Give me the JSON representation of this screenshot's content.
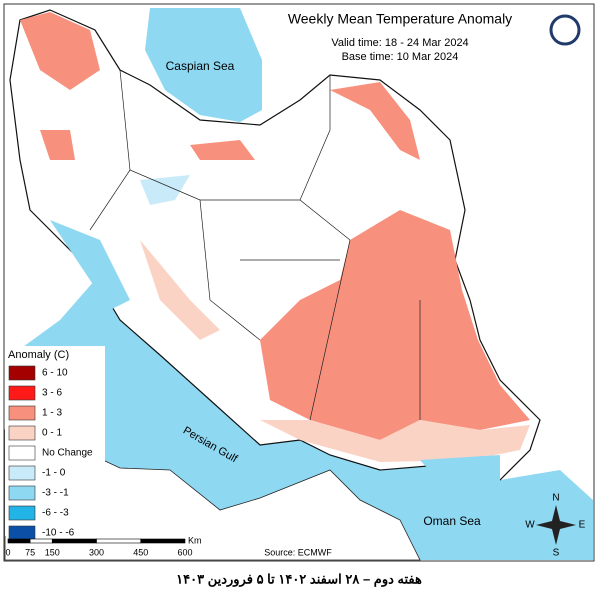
{
  "map": {
    "title": "Weekly Mean Temperature Anomaly",
    "subtitle": [
      "Valid time: 18 - 24 Mar 2024",
      "Base time: 10 Mar 2024"
    ],
    "labels": {
      "caspian": "Caspian Sea",
      "gulf": "Persian Gulf",
      "oman": "Oman Sea"
    },
    "legend": {
      "title": "Anomaly (C)",
      "items": [
        {
          "label": "6 - 10",
          "color": "#a50000"
        },
        {
          "label": "3 - 6",
          "color": "#ff1a1a"
        },
        {
          "label": "1 - 3",
          "color": "#f7917d"
        },
        {
          "label": "0 - 1",
          "color": "#fbd3c4"
        },
        {
          "label": "No Change",
          "color": "#ffffff"
        },
        {
          "label": "-1 - 0",
          "color": "#c9eaf8"
        },
        {
          "label": "-3 - -1",
          "color": "#8fd8f2"
        },
        {
          "label": "-6 - -3",
          "color": "#22b4e6"
        },
        {
          "label": "-10 - -6",
          "color": "#0b4fa6"
        }
      ]
    },
    "scale": {
      "ticks": [
        0,
        75,
        150,
        300,
        450,
        600
      ],
      "unit": "Km"
    },
    "source": "Source: ECMWF",
    "compass": {
      "n": "N",
      "s": "S",
      "e": "E",
      "w": "W"
    },
    "footer": "هفته دوم – ۲۸ اسفند ۱۴۰۲ تا ۵ فروردین ۱۴۰۳"
  }
}
